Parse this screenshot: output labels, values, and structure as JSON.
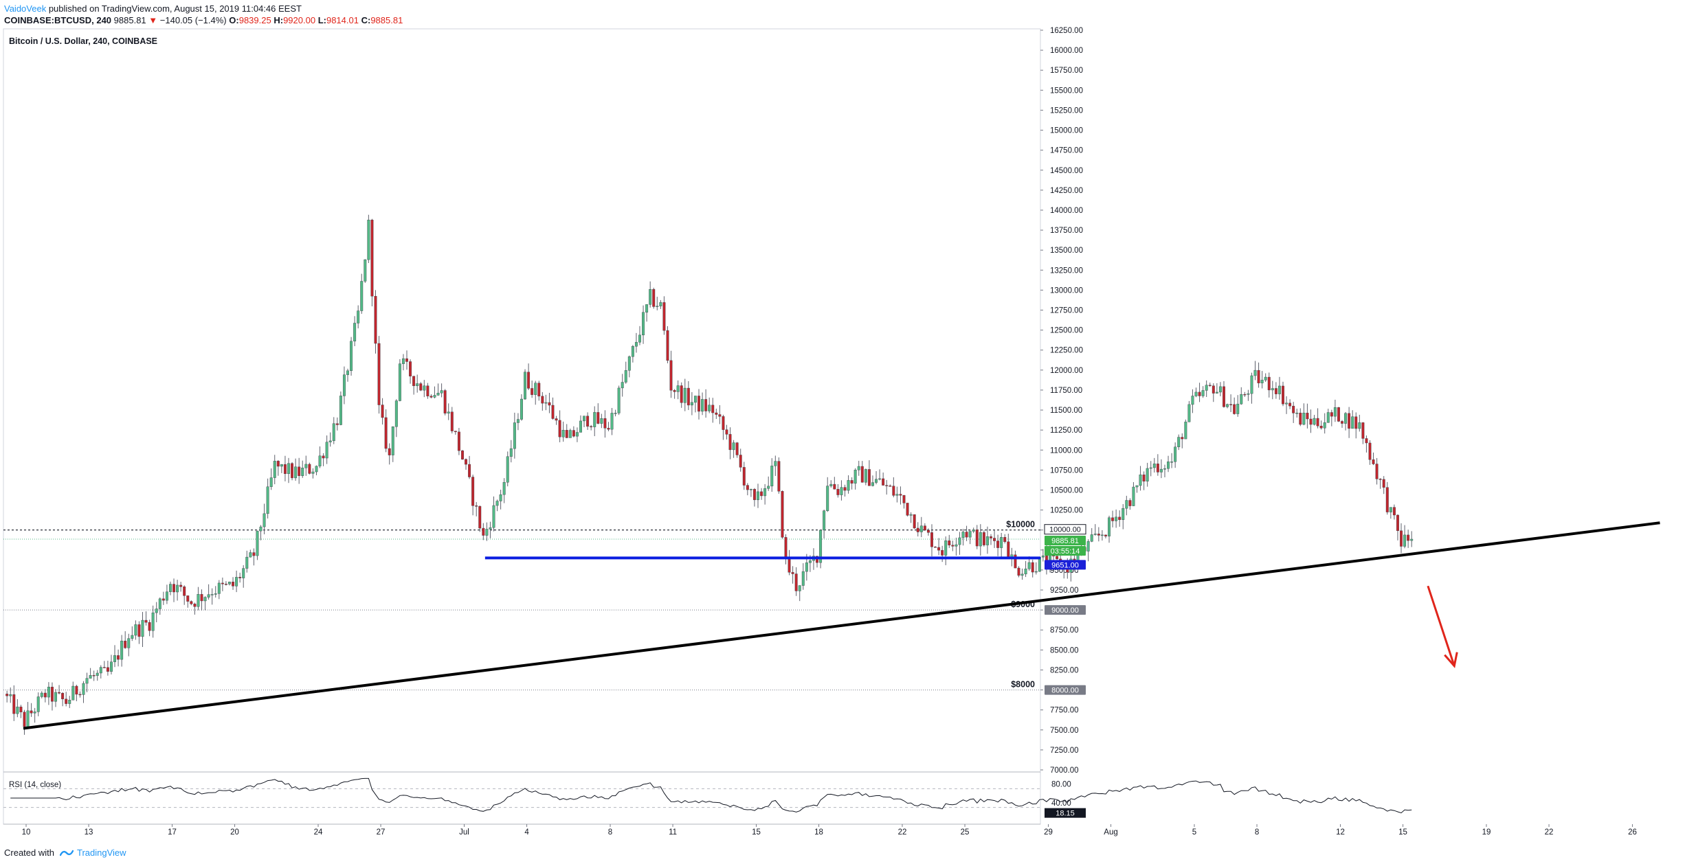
{
  "header": {
    "author": "VaidoVeek",
    "published_text": "published on TradingView.com, August 15, 2019 11:04:46 EEST",
    "symbol": "COINBASE:BTCUSD, 240",
    "last": "9885.81",
    "change_arrow": "▼",
    "change": "−140.05 (−1.4%)",
    "o_label": "O:",
    "o_value": "9839.25",
    "h_label": "H:",
    "h_value": "9920.00",
    "l_label": "L:",
    "l_value": "9814.01",
    "c_label": "C:",
    "c_value": "9885.81"
  },
  "footer": {
    "created_with": "Created with",
    "brand": "TradingView",
    "logo_icon": "tradingview-logo-icon"
  },
  "colors": {
    "up": "#53b987",
    "down": "#c0262e",
    "support": "#0b1ee0",
    "trendline": "#000000",
    "arrow": "#e0251b",
    "price_badge": "#3cb34a",
    "support_badge": "#1a20d8",
    "level_badge": "#787b86",
    "rsi_line": "#131722"
  },
  "chart_data": [
    {
      "type": "candlestick",
      "title": "Bitcoin / U.S. Dollar, 240, COINBASE",
      "ylim": [
        7000,
        16250
      ],
      "y_ticks": [
        "16250.00",
        "16000.00",
        "15750.00",
        "15500.00",
        "15250.00",
        "15000.00",
        "14750.00",
        "14500.00",
        "14250.00",
        "14000.00",
        "13750.00",
        "13500.00",
        "13250.00",
        "13000.00",
        "12750.00",
        "12500.00",
        "12250.00",
        "12000.00",
        "11750.00",
        "11500.00",
        "11250.00",
        "11000.00",
        "10750.00",
        "10500.00",
        "10250.00",
        "10000.00",
        "9750.00",
        "9500.00",
        "9250.00",
        "9000.00",
        "8750.00",
        "8500.00",
        "8250.00",
        "8000.00",
        "7750.00",
        "7500.00",
        "7250.00",
        "7000.00"
      ],
      "x_ticks": [
        {
          "label": "10",
          "date": "2019-06-10"
        },
        {
          "label": "13",
          "date": "2019-06-13"
        },
        {
          "label": "17",
          "date": "2019-06-17"
        },
        {
          "label": "20",
          "date": "2019-06-20"
        },
        {
          "label": "24",
          "date": "2019-06-24"
        },
        {
          "label": "27",
          "date": "2019-06-27"
        },
        {
          "label": "Jul",
          "date": "2019-07-01"
        },
        {
          "label": "4",
          "date": "2019-07-04"
        },
        {
          "label": "8",
          "date": "2019-07-08"
        },
        {
          "label": "11",
          "date": "2019-07-11"
        },
        {
          "label": "15",
          "date": "2019-07-15"
        },
        {
          "label": "18",
          "date": "2019-07-18"
        },
        {
          "label": "22",
          "date": "2019-07-22"
        },
        {
          "label": "25",
          "date": "2019-07-25"
        },
        {
          "label": "29",
          "date": "2019-07-29"
        },
        {
          "label": "Aug",
          "date": "2019-08-01"
        },
        {
          "label": "5",
          "date": "2019-08-05"
        },
        {
          "label": "8",
          "date": "2019-08-08"
        },
        {
          "label": "12",
          "date": "2019-08-12"
        },
        {
          "label": "15",
          "date": "2019-08-15"
        },
        {
          "label": "19",
          "date": "2019-08-19"
        },
        {
          "label": "22",
          "date": "2019-08-22"
        },
        {
          "label": "26",
          "date": "2019-08-26"
        }
      ],
      "price_keypoints": [
        {
          "date": "2019-06-09",
          "price": 7950
        },
        {
          "date": "2019-06-10",
          "price": 7600
        },
        {
          "date": "2019-06-11",
          "price": 7950
        },
        {
          "date": "2019-06-12",
          "price": 7850
        },
        {
          "date": "2019-06-13",
          "price": 8150
        },
        {
          "date": "2019-06-14",
          "price": 8200
        },
        {
          "date": "2019-06-15",
          "price": 8700
        },
        {
          "date": "2019-06-16",
          "price": 8850
        },
        {
          "date": "2019-06-17",
          "price": 9350
        },
        {
          "date": "2019-06-18",
          "price": 9100
        },
        {
          "date": "2019-06-19",
          "price": 9250
        },
        {
          "date": "2019-06-20",
          "price": 9300
        },
        {
          "date": "2019-06-21",
          "price": 9700
        },
        {
          "date": "2019-06-22",
          "price": 10800
        },
        {
          "date": "2019-06-23",
          "price": 10700
        },
        {
          "date": "2019-06-24",
          "price": 10800
        },
        {
          "date": "2019-06-25",
          "price": 11400
        },
        {
          "date": "2019-06-26",
          "price": 12700
        },
        {
          "date": "2019-06-26T12:00",
          "price": 13800
        },
        {
          "date": "2019-06-27",
          "price": 11500
        },
        {
          "date": "2019-06-27T12:00",
          "price": 10900
        },
        {
          "date": "2019-06-28",
          "price": 12100
        },
        {
          "date": "2019-06-29",
          "price": 11800
        },
        {
          "date": "2019-06-30",
          "price": 11700
        },
        {
          "date": "2019-07-01",
          "price": 10900
        },
        {
          "date": "2019-07-02",
          "price": 9900
        },
        {
          "date": "2019-07-03",
          "price": 10600
        },
        {
          "date": "2019-07-04",
          "price": 11900
        },
        {
          "date": "2019-07-05",
          "price": 11600
        },
        {
          "date": "2019-07-06",
          "price": 11100
        },
        {
          "date": "2019-07-07",
          "price": 11400
        },
        {
          "date": "2019-07-08",
          "price": 11300
        },
        {
          "date": "2019-07-09",
          "price": 12100
        },
        {
          "date": "2019-07-10",
          "price": 12900
        },
        {
          "date": "2019-07-10T12:00",
          "price": 12800
        },
        {
          "date": "2019-07-11",
          "price": 11800
        },
        {
          "date": "2019-07-12",
          "price": 11600
        },
        {
          "date": "2019-07-13",
          "price": 11500
        },
        {
          "date": "2019-07-14",
          "price": 11000
        },
        {
          "date": "2019-07-15",
          "price": 10300
        },
        {
          "date": "2019-07-16",
          "price": 10800
        },
        {
          "date": "2019-07-16T12:00",
          "price": 9600
        },
        {
          "date": "2019-07-17",
          "price": 9300
        },
        {
          "date": "2019-07-18",
          "price": 9700
        },
        {
          "date": "2019-07-18T12:00",
          "price": 10600
        },
        {
          "date": "2019-07-19",
          "price": 10500
        },
        {
          "date": "2019-07-20",
          "price": 10700
        },
        {
          "date": "2019-07-21",
          "price": 10600
        },
        {
          "date": "2019-07-22",
          "price": 10400
        },
        {
          "date": "2019-07-23",
          "price": 10000
        },
        {
          "date": "2019-07-24",
          "price": 9750
        },
        {
          "date": "2019-07-25",
          "price": 10000
        },
        {
          "date": "2019-07-26",
          "price": 9850
        },
        {
          "date": "2019-07-27",
          "price": 9900
        },
        {
          "date": "2019-07-27T12:00",
          "price": 9500
        },
        {
          "date": "2019-07-28",
          "price": 9550
        },
        {
          "date": "2019-07-29",
          "price": 9600
        },
        {
          "date": "2019-07-30",
          "price": 9550
        },
        {
          "date": "2019-07-31",
          "price": 9800
        },
        {
          "date": "2019-08-01",
          "price": 10050
        },
        {
          "date": "2019-08-02",
          "price": 10400
        },
        {
          "date": "2019-08-03",
          "price": 10800
        },
        {
          "date": "2019-08-04",
          "price": 10850
        },
        {
          "date": "2019-08-05",
          "price": 11600
        },
        {
          "date": "2019-08-06",
          "price": 11800
        },
        {
          "date": "2019-08-07",
          "price": 11500
        },
        {
          "date": "2019-08-08",
          "price": 11900
        },
        {
          "date": "2019-08-09",
          "price": 11800
        },
        {
          "date": "2019-08-10",
          "price": 11400
        },
        {
          "date": "2019-08-11",
          "price": 11350
        },
        {
          "date": "2019-08-12",
          "price": 11450
        },
        {
          "date": "2019-08-13",
          "price": 11300
        },
        {
          "date": "2019-08-14",
          "price": 10600
        },
        {
          "date": "2019-08-14T12:00",
          "price": 10200
        },
        {
          "date": "2019-08-15",
          "price": 9850
        },
        {
          "date": "2019-08-15T08:00",
          "price": 9885.81
        }
      ],
      "price_badges": [
        {
          "value": "10000.00"
        },
        {
          "value": "9885.81"
        },
        {
          "value": "03:55:14"
        },
        {
          "value": "9651.00"
        },
        {
          "value": "9000.00"
        },
        {
          "value": "8000.00"
        }
      ],
      "levels": [
        {
          "label": "$10000",
          "price": 10000
        },
        {
          "label": "$9000",
          "price": 9000
        },
        {
          "label": "$8000",
          "price": 8000
        }
      ],
      "support": {
        "price": 9651,
        "from_date": "2019-07-02"
      },
      "trendline": [
        {
          "date": "2019-06-10",
          "price": 7520
        },
        {
          "date": "2019-08-26",
          "price": 10030
        }
      ],
      "projection_arrow": {
        "from": {
          "date": "2019-08-16",
          "price": 9300
        },
        "to": {
          "date": "2019-08-17",
          "price": 8300
        }
      }
    },
    {
      "type": "line",
      "title": "RSI (14, close)",
      "ylim": [
        0,
        100
      ],
      "y_ticks": [
        "80.00",
        "40.00"
      ],
      "guides": [
        70,
        30
      ],
      "last_badge": "18.15"
    }
  ]
}
